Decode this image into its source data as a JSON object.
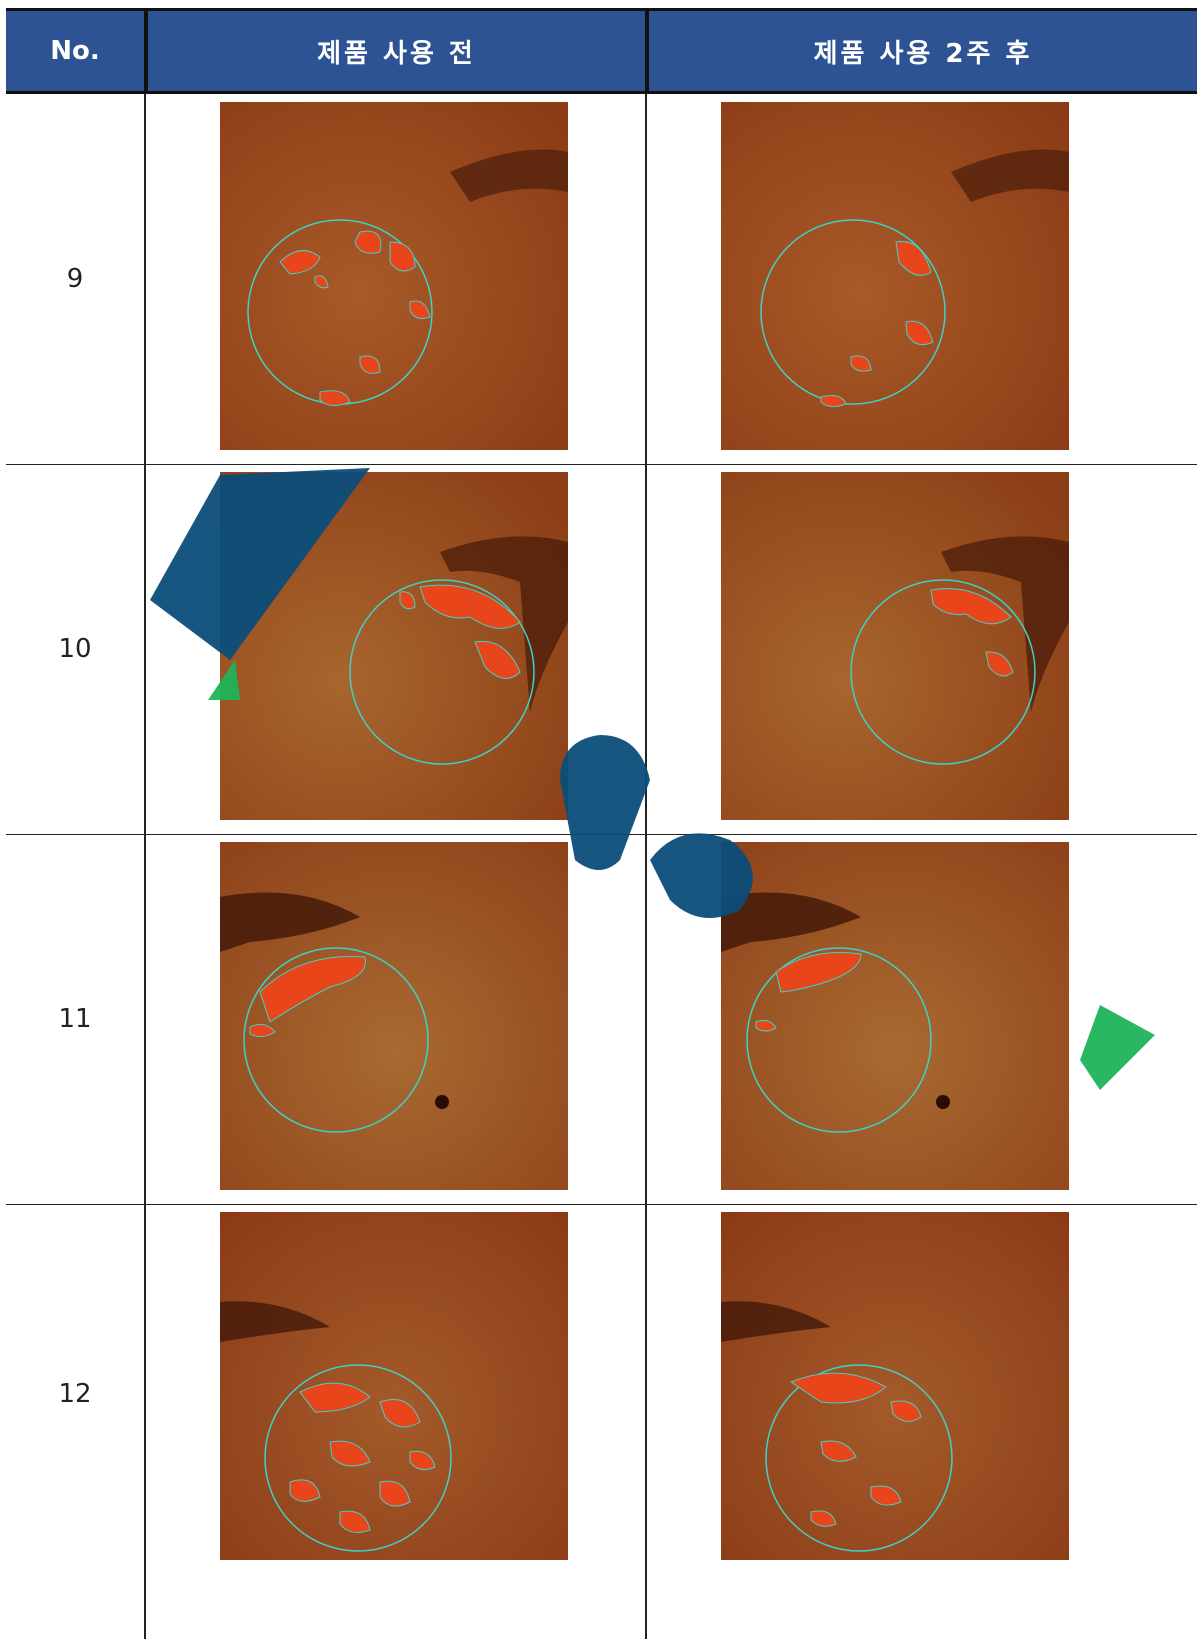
{
  "header": {
    "col_no": "No.",
    "col_before": "제품 사용 전",
    "col_after": "제품 사용 2주 후"
  },
  "rows": [
    {
      "no": "9"
    },
    {
      "no": "10"
    },
    {
      "no": "11"
    },
    {
      "no": "12"
    }
  ],
  "colors": {
    "header_bg": "#2e5394",
    "header_text": "#ffffff",
    "skin": "#9b4a1e",
    "spot": "#e8461a",
    "circle": "#40d0c8",
    "watermark_blue": "#0b4d7a",
    "watermark_green": "#1db35a"
  }
}
